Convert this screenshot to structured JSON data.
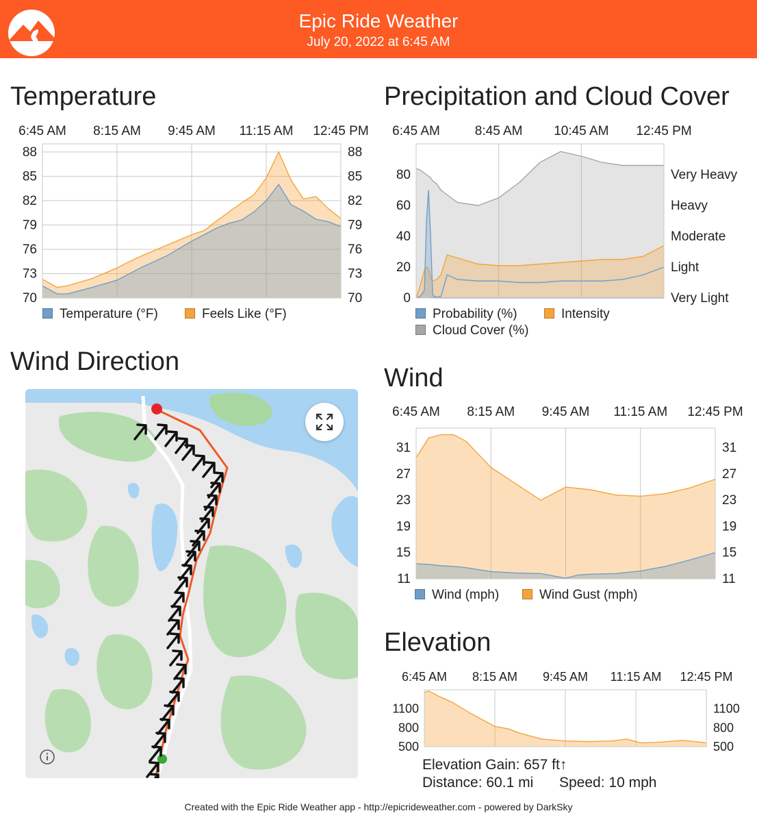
{
  "header": {
    "title": "Epic Ride Weather",
    "date": "July 20, 2022 at 6:45 AM",
    "logo_icon": "mountain-road-logo-icon",
    "bg_color": "#fd5a24"
  },
  "sections": {
    "temperature": "Temperature",
    "precip": "Precipitation and Cloud Cover",
    "wind_direction": "Wind Direction",
    "wind": "Wind",
    "elevation": "Elevation"
  },
  "colors": {
    "orange": "#f5a43a",
    "blue": "#6f9fc9",
    "gray": "#a6a6a6",
    "route": "#ee5a2a"
  },
  "chart_data": [
    {
      "id": "temperature",
      "type": "area",
      "x_ticks": [
        "6:45 AM",
        "8:15 AM",
        "9:45 AM",
        "11:15 AM",
        "12:45 PM"
      ],
      "y_ticks": [
        70,
        73,
        76,
        79,
        82,
        85,
        88
      ],
      "ylim": [
        70,
        89
      ],
      "grid": true,
      "legend_position": "bottom",
      "x": [
        0,
        0.3,
        0.5,
        1,
        1.5,
        1.75,
        2,
        2.5,
        3,
        3.25,
        3.5,
        3.75,
        4,
        4.25,
        4.5,
        4.75,
        5,
        5.25,
        5.5,
        5.75,
        6
      ],
      "series": [
        {
          "name": "Temperature (°F)",
          "color": "#6f9fc9",
          "values": [
            71.5,
            70.5,
            70.5,
            71.3,
            72.2,
            73,
            73.8,
            75.2,
            77,
            77.8,
            78.6,
            79.2,
            79.6,
            80.6,
            82,
            84,
            81.5,
            80.7,
            79.7,
            79.4,
            78.8
          ]
        },
        {
          "name": "Feels Like (°F)",
          "color": "#f5a43a",
          "values": [
            72.3,
            71.3,
            71.5,
            72.4,
            73.7,
            74.5,
            75.2,
            76.5,
            77.8,
            78.3,
            79.5,
            80.6,
            81.7,
            82.7,
            84.8,
            88,
            84.5,
            82.2,
            82.5,
            81,
            79.8
          ]
        }
      ]
    },
    {
      "id": "precipitation",
      "type": "area",
      "x_ticks": [
        "6:45 AM",
        "8:45 AM",
        "10:45 AM",
        "12:45 PM"
      ],
      "y_ticks": [
        0,
        20,
        40,
        60,
        80
      ],
      "y_right_ticks": [
        "Very Light",
        "Light",
        "Moderate",
        "Heavy",
        "Very Heavy"
      ],
      "ylim": [
        0,
        100
      ],
      "grid": true,
      "legend_position": "bottom",
      "x": [
        0,
        0.1,
        0.2,
        0.25,
        0.3,
        0.35,
        0.4,
        0.5,
        0.6,
        0.75,
        1,
        1.5,
        2,
        2.5,
        3,
        3.5,
        4,
        4.5,
        5,
        5.5,
        6
      ],
      "series": [
        {
          "name": "Probability (%)",
          "color": "#6f9fc9",
          "values": [
            0,
            1,
            5,
            50,
            70,
            40,
            2,
            0,
            0,
            0,
            0,
            0,
            0,
            0,
            0,
            0,
            0,
            0,
            0,
            0,
            0
          ]
        },
        {
          "name": "Intensity",
          "color": "#f5a43a",
          "values": [
            0,
            8,
            18,
            20,
            19,
            13,
            11,
            12,
            15,
            28,
            26,
            22,
            21,
            21,
            22,
            23,
            24,
            25,
            25,
            27,
            34
          ]
        },
        {
          "name": "Cloud Cover (%)",
          "color": "#a6a6a6",
          "values": [
            84,
            83,
            81,
            80,
            79,
            78,
            76,
            74,
            70,
            67,
            62,
            60,
            65,
            75,
            88,
            95,
            92,
            88,
            86,
            86,
            86
          ]
        }
      ],
      "lower_lines": [
        {
          "color": "#6f9fc9",
          "x": [
            0.35,
            0.6,
            0.75,
            1,
            1.5,
            2,
            2.5,
            3,
            3.5,
            4,
            4.5,
            5,
            5.5,
            6
          ],
          "values": [
            0,
            1,
            15,
            12,
            11,
            11,
            10,
            10,
            11,
            11,
            11,
            12,
            15,
            20
          ]
        }
      ]
    },
    {
      "id": "wind",
      "type": "area",
      "x_ticks": [
        "6:45 AM",
        "8:15 AM",
        "9:45 AM",
        "11:15 AM",
        "12:45 PM"
      ],
      "y_ticks": [
        11,
        15,
        19,
        23,
        27,
        31
      ],
      "ylim": [
        11,
        34
      ],
      "grid": true,
      "legend_position": "bottom",
      "x": [
        0,
        0.25,
        0.5,
        0.75,
        1,
        1.5,
        2,
        2.5,
        3,
        3.25,
        3.5,
        4,
        4.5,
        5,
        5.5,
        6
      ],
      "series": [
        {
          "name": "Wind (mph)",
          "color": "#6f9fc9",
          "values": [
            13.3,
            13.2,
            13,
            12.9,
            12.7,
            12.1,
            11.9,
            11.8,
            11.1,
            11.6,
            11.7,
            11.8,
            12.2,
            12.9,
            13.9,
            15
          ]
        },
        {
          "name": "Wind Gust (mph)",
          "color": "#f5a43a",
          "values": [
            29.5,
            32.5,
            33,
            33,
            32,
            28,
            25.5,
            23,
            25,
            24.8,
            24.6,
            23.8,
            23.6,
            24,
            24.9,
            26.2
          ]
        }
      ]
    },
    {
      "id": "elevation",
      "type": "area",
      "x_ticks": [
        "6:45 AM",
        "8:15 AM",
        "9:45 AM",
        "11:15 AM",
        "12:45 PM"
      ],
      "y_ticks": [
        500,
        800,
        1100
      ],
      "ylim": [
        500,
        1400
      ],
      "grid": true,
      "x": [
        0,
        0.1,
        0.3,
        0.6,
        1,
        1.3,
        1.5,
        1.8,
        2,
        2.2,
        2.5,
        3,
        3.5,
        4,
        4.3,
        4.6,
        5,
        5.5,
        6
      ],
      "series": [
        {
          "name": "Elevation",
          "color": "#f5a43a",
          "values": [
            1360,
            1380,
            1300,
            1200,
            1020,
            900,
            820,
            780,
            720,
            680,
            620,
            590,
            580,
            590,
            620,
            560,
            570,
            600,
            560
          ]
        }
      ]
    }
  ],
  "legends": {
    "temperature": [
      {
        "label": "Temperature (°F)",
        "color": "#6f9fc9"
      },
      {
        "label": "Feels Like (°F)",
        "color": "#f5a43a"
      }
    ],
    "precip": [
      {
        "label": "Probability (%)",
        "color": "#6f9fc9"
      },
      {
        "label": "Intensity",
        "color": "#f5a43a"
      },
      {
        "label": "Cloud Cover (%)",
        "color": "#a6a6a6"
      }
    ],
    "wind": [
      {
        "label": "Wind (mph)",
        "color": "#6f9fc9"
      },
      {
        "label": "Wind Gust (mph)",
        "color": "#f5a43a"
      }
    ]
  },
  "map": {
    "expand_icon": "expand-arrows-icon",
    "info_icon": "info-icon",
    "start_marker_color": "#e5242a",
    "end_marker_color": "#3ba935"
  },
  "elevation_stats": {
    "gain": "Elevation Gain: 657 ft↑",
    "distance": "Distance: 60.1 mi",
    "speed": "Speed: 10 mph"
  },
  "footer": "Created with the Epic Ride Weather app - http://epicrideweather.com - powered by DarkSky"
}
